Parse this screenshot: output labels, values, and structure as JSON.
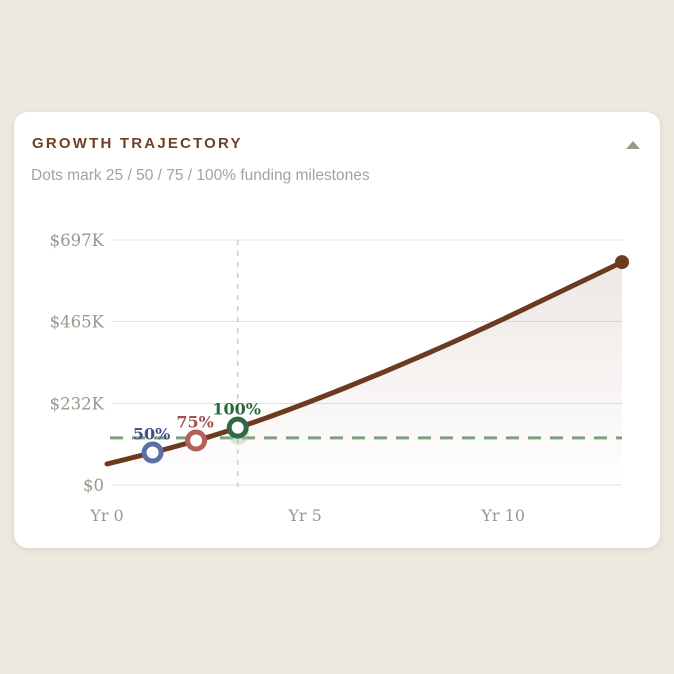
{
  "card": {
    "title": "GROWTH TRAJECTORY",
    "subtitle": "Dots mark 25 / 50 / 75 / 100% funding milestones",
    "collapse_icon": "triangle-up"
  },
  "chart_data": {
    "type": "area",
    "title": "GROWTH TRAJECTORY",
    "x": [
      0,
      1,
      2,
      3,
      4,
      5,
      6,
      7,
      8,
      9,
      10,
      11,
      12,
      13
    ],
    "series": [
      {
        "name": "projected-funding-growth",
        "color": "#6B3A1F",
        "values": [
          60,
          88,
          118,
          152,
          190,
          232,
          276,
          322,
          370,
          420,
          472,
          526,
          580,
          634
        ]
      }
    ],
    "x_ticks": [
      {
        "value": 0,
        "label": "Yr 0"
      },
      {
        "value": 5,
        "label": "Yr 5"
      },
      {
        "value": 10,
        "label": "Yr 10"
      }
    ],
    "y_ticks": [
      {
        "value": 0,
        "label": "$0"
      },
      {
        "value": 232,
        "label": "$232K"
      },
      {
        "value": 465,
        "label": "$465K"
      },
      {
        "value": 697,
        "label": "$697K"
      }
    ],
    "xlim": [
      0,
      13
    ],
    "ylim": [
      0,
      697
    ],
    "grid": "horizontal-only",
    "legend": "none",
    "funding_goal_line": {
      "value": 134,
      "color": "#7EA27B",
      "style": "dashed-horizontal"
    },
    "milestone_marker_line": {
      "x": 3.3,
      "color": "#C9CFC6",
      "style": "dashed-vertical"
    },
    "milestones": [
      {
        "label": "50%",
        "x": 1.15,
        "dot_color": "#5C70A4",
        "label_color": "#44518C",
        "glow": false
      },
      {
        "label": "75%",
        "x": 2.25,
        "dot_color": "#B2625B",
        "label_color": "#A3524B",
        "glow": false
      },
      {
        "label": "100%",
        "x": 3.3,
        "dot_color": "#2E6B44",
        "label_color": "#29683C",
        "glow": true
      }
    ],
    "end_dot": {
      "x": 13,
      "value": 634,
      "color": "#6B3A1F"
    },
    "area_fill": {
      "top": "rgba(107,58,31,0.12)",
      "bottom": "rgba(107,58,31,0.0)"
    }
  }
}
